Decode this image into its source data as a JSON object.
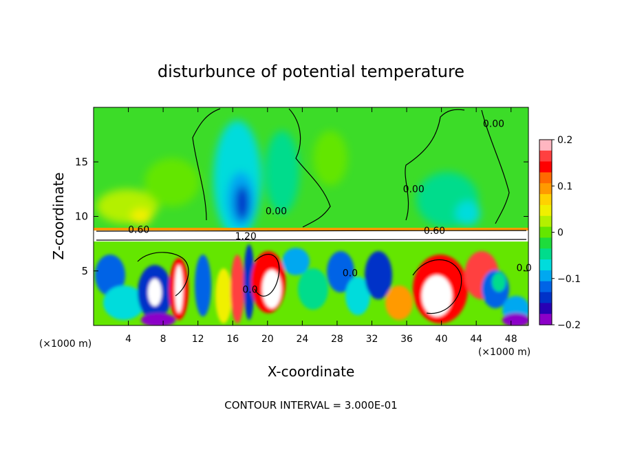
{
  "chart_data": {
    "type": "heatmap",
    "title": "disturbunce of potential temperature",
    "xlabel": "X-coordinate",
    "ylabel": "Z-coordinate",
    "x_unit_left": "(×1000 m)",
    "x_unit_right": "(×1000 m)",
    "xlim": [
      0,
      50
    ],
    "ylim": [
      0,
      20
    ],
    "x_ticks": [
      4,
      8,
      12,
      16,
      20,
      24,
      28,
      32,
      36,
      40,
      44,
      48
    ],
    "y_ticks": [
      5,
      10,
      15
    ],
    "colorbar": {
      "range": [
        -0.2,
        0.2
      ],
      "tick_values": [
        0.2,
        0.1,
        0,
        -0.1,
        -0.2
      ],
      "tick_labels": [
        "0.2",
        "0.1",
        "0",
        "−0.1",
        "−0.2"
      ],
      "colors": [
        "#ffb6c1",
        "#ff4040",
        "#ff0000",
        "#ff6a00",
        "#ff9a00",
        "#ffd200",
        "#f0f000",
        "#b4f000",
        "#64e600",
        "#1edc3c",
        "#00dc8c",
        "#00dcdc",
        "#00a8f0",
        "#0064e6",
        "#0032c8",
        "#2800b4",
        "#8c00c8"
      ]
    },
    "contour_interval": "CONTOUR INTERVAL = 3.000E-01",
    "contour_labels": [
      {
        "text": "0.00",
        "x": 46,
        "y": 18.2
      },
      {
        "text": "0.00",
        "x": 21.0,
        "y": 10.2
      },
      {
        "text": "0.00",
        "x": 36.8,
        "y": 12.2
      },
      {
        "text": "0.60",
        "x": 5.2,
        "y": 8.5
      },
      {
        "text": "0.60",
        "x": 39.2,
        "y": 8.4
      },
      {
        "text": "1.20",
        "x": 17.5,
        "y": 7.9
      },
      {
        "text": "0.0",
        "x": 18.0,
        "y": 3.0
      },
      {
        "text": "0.0",
        "x": 29.5,
        "y": 4.5
      },
      {
        "text": "0.0",
        "x": 49.5,
        "y": 5.0
      }
    ]
  }
}
